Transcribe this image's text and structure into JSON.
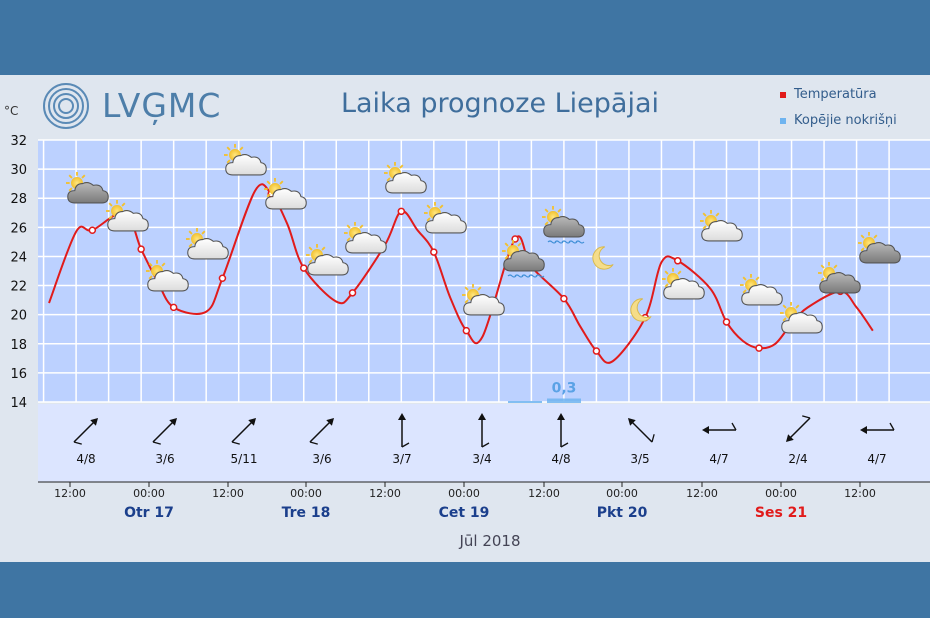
{
  "header": {
    "logo": "LVĢMC",
    "title": "Laika prognoze Liepājai",
    "unit": "°C"
  },
  "legend": [
    {
      "name": "Temperatūra",
      "color": "#e11b1b"
    },
    {
      "name": "Kopējie nokrišņi",
      "color": "#6fb4f0"
    }
  ],
  "month_label": "Jūl 2018",
  "chart_data": {
    "type": "line",
    "ylim": [
      14,
      32
    ],
    "yticks": [
      14,
      16,
      18,
      20,
      22,
      24,
      26,
      28,
      30,
      32
    ],
    "x_hours": [
      0,
      5,
      8,
      14,
      17,
      20,
      23,
      29,
      32,
      38,
      41,
      44,
      47,
      53,
      56,
      62,
      65,
      68,
      71,
      74,
      77,
      80,
      86,
      89,
      95,
      98,
      101,
      104,
      110,
      113,
      116,
      122,
      125,
      128,
      131,
      134,
      137,
      140,
      146,
      149,
      152
    ],
    "series": [
      {
        "name": "Temperatūra",
        "color": "#e11b1b",
        "values": [
          20.8,
          25.7,
          25.8,
          27.0,
          24.5,
          22.3,
          20.5,
          20.2,
          22.5,
          28.5,
          28.3,
          26.2,
          23.2,
          20.9,
          21.5,
          24.8,
          27.1,
          25.8,
          24.3,
          21.2,
          18.9,
          18.5,
          25.2,
          23.3,
          21.1,
          19.2,
          17.5,
          16.8,
          19.8,
          23.6,
          23.7,
          21.8,
          19.5,
          18.2,
          17.7,
          18.0,
          19.4,
          20.5,
          21.6,
          20.5,
          18.9
        ]
      }
    ],
    "precipitation": [
      {
        "label": "",
        "value": 0.1
      },
      {
        "label": "0,3",
        "value": 0.3
      }
    ],
    "time_ticks": [
      "12:00",
      "00:00",
      "12:00",
      "00:00",
      "12:00",
      "00:00",
      "12:00",
      "00:00",
      "12:00",
      "00:00",
      "12:00"
    ],
    "days": [
      {
        "label": "Otr 17",
        "color": "#1b3f8c"
      },
      {
        "label": "Tre 18",
        "color": "#1b3f8c"
      },
      {
        "label": "Cet 19",
        "color": "#1b3f8c"
      },
      {
        "label": "Pkt 20",
        "color": "#1b3f8c"
      },
      {
        "label": "Ses 21",
        "color": "#e11b1b"
      }
    ],
    "wind": [
      "4/8",
      "3/6",
      "5/11",
      "3/6",
      "3/7",
      "3/4",
      "4/8",
      "3/5",
      "4/7",
      "2/4",
      "4/7"
    ],
    "wind_direction_deg": [
      225,
      225,
      225,
      225,
      180,
      180,
      180,
      135,
      90,
      45,
      90
    ],
    "weather_icons": [
      "partly-cloudy-dark-icon",
      "partly-cloudy-icon",
      "partly-cloudy-icon",
      "partly-cloudy-icon",
      "partly-cloudy-icon",
      "partly-cloudy-icon",
      "partly-cloudy-icon",
      "partly-cloudy-icon",
      "partly-cloudy-icon",
      "partly-cloudy-icon",
      "partly-cloudy-icon",
      "partly-cloudy-rain-icon",
      "partly-cloudy-rain-icon",
      "moon-icon",
      "partly-cloudy-icon",
      "moon-icon",
      "partly-cloudy-icon",
      "partly-cloudy-icon",
      "partly-cloudy-icon",
      "partly-cloudy-dark-icon",
      "partly-cloudy-dark-icon"
    ],
    "grid": true
  }
}
